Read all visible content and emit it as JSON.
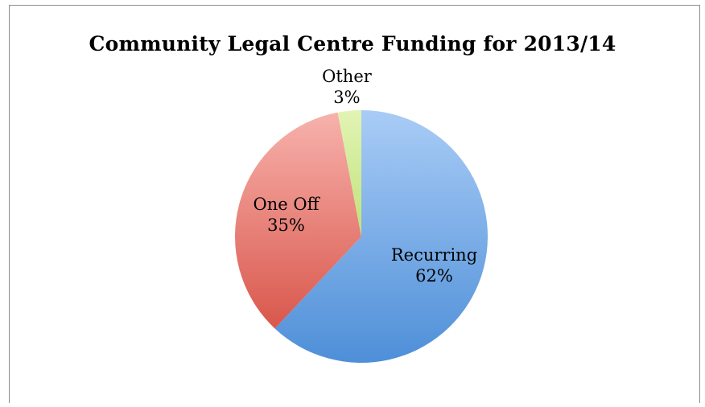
{
  "chart_data": {
    "type": "pie",
    "title": "Community Legal Centre Funding for 2013/14",
    "slices": [
      {
        "label": "Recurring",
        "value": 62,
        "display": "62%",
        "color": "#5b9bd5"
      },
      {
        "label": "One Off",
        "value": 35,
        "display": "35%",
        "color": "#e0645a"
      },
      {
        "label": "Other",
        "value": 3,
        "display": "3%",
        "color": "#c9e68a"
      }
    ],
    "start_angle_deg": 0,
    "direction": "clockwise",
    "legend": "none",
    "labels": "category name and percentage"
  }
}
